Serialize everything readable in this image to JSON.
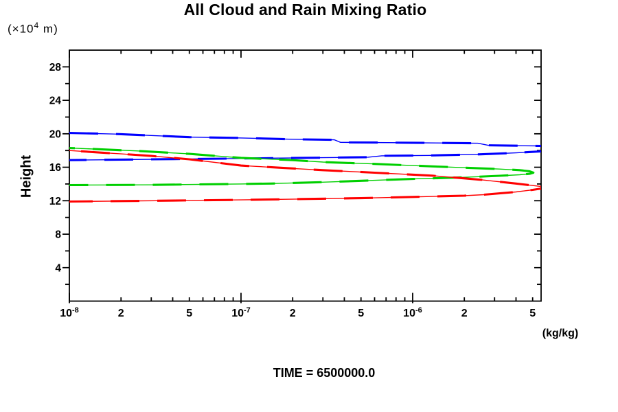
{
  "header": {
    "title": "All Cloud and Rain Mixing Ratio",
    "y_unit": {
      "prefix": "(×10",
      "sup": "4",
      "suffix": " m)"
    }
  },
  "footer": {
    "time_label": "TIME = 6500000.0"
  },
  "chart_data": {
    "type": "line",
    "title": "All Cloud and Rain Mixing Ratio",
    "xlabel": "(kg/kg)",
    "ylabel": "Height",
    "y_unit": "(×10^4 m)",
    "x_scale": "log",
    "x_range": [
      1e-08,
      5.6e-06
    ],
    "y_range": [
      0,
      30
    ],
    "grid": false,
    "legend": "none",
    "x_major_ticks": [
      {
        "value": 1e-08,
        "base": "10",
        "sup": "-8"
      },
      {
        "value": 1e-07,
        "base": "10",
        "sup": "-7"
      },
      {
        "value": 1e-06,
        "base": "10",
        "sup": "-6"
      }
    ],
    "x_minor_ticks": [
      2e-08,
      3e-08,
      4e-08,
      5e-08,
      6e-08,
      7e-08,
      8e-08,
      9e-08,
      2e-07,
      3e-07,
      4e-07,
      5e-07,
      6e-07,
      7e-07,
      8e-07,
      9e-07,
      2e-06,
      3e-06,
      4e-06,
      5e-06
    ],
    "x_minor_labels": [
      {
        "value": 2e-08,
        "label": "2"
      },
      {
        "value": 5e-08,
        "label": "5"
      },
      {
        "value": 2e-07,
        "label": "2"
      },
      {
        "value": 5e-07,
        "label": "5"
      },
      {
        "value": 2e-06,
        "label": "2"
      },
      {
        "value": 5e-06,
        "label": "5"
      }
    ],
    "y_major_ticks": [
      {
        "value": 4,
        "label": "4"
      },
      {
        "value": 8,
        "label": "8"
      },
      {
        "value": 12,
        "label": "12"
      },
      {
        "value": 16,
        "label": "16"
      },
      {
        "value": 20,
        "label": "20"
      },
      {
        "value": 24,
        "label": "24"
      },
      {
        "value": 28,
        "label": "28"
      }
    ],
    "y_minor_ticks": [
      2,
      6,
      10,
      14,
      18,
      22,
      26
    ],
    "series": [
      {
        "name": "blue-upper-branch",
        "color": "#0000ff",
        "points": [
          [
            1e-08,
            20.1
          ],
          [
            2e-08,
            19.95
          ],
          [
            5e-08,
            19.6
          ],
          [
            1e-07,
            19.5
          ],
          [
            2e-07,
            19.35
          ],
          [
            3.5e-07,
            19.28
          ],
          [
            3.8e-07,
            18.98
          ],
          [
            1e-06,
            18.93
          ],
          [
            2.4e-06,
            18.87
          ],
          [
            2.75e-06,
            18.62
          ],
          [
            4.5e-06,
            18.57
          ],
          [
            5.6e-06,
            18.55
          ]
        ]
      },
      {
        "name": "blue-lower-branch",
        "color": "#0000ff",
        "points": [
          [
            1e-08,
            16.85
          ],
          [
            3e-08,
            16.95
          ],
          [
            1e-07,
            17.05
          ],
          [
            3e-07,
            17.15
          ],
          [
            5.5e-07,
            17.2
          ],
          [
            6.6e-07,
            17.37
          ],
          [
            1.3e-06,
            17.42
          ],
          [
            2.5e-06,
            17.55
          ],
          [
            4e-06,
            17.72
          ],
          [
            5.6e-06,
            17.9
          ]
        ]
      },
      {
        "name": "green-loop",
        "color": "#00cf00",
        "points": [
          [
            1e-08,
            18.3
          ],
          [
            2.5e-08,
            17.95
          ],
          [
            5e-08,
            17.6
          ],
          [
            1e-07,
            17.12
          ],
          [
            2e-07,
            16.85
          ],
          [
            3e-07,
            16.62
          ],
          [
            6e-07,
            16.4
          ],
          [
            1.3e-06,
            16.1
          ],
          [
            2e-06,
            15.95
          ],
          [
            3.2e-06,
            15.78
          ],
          [
            4.2e-06,
            15.65
          ],
          [
            4.8e-06,
            15.52
          ],
          [
            5.05e-06,
            15.35
          ],
          [
            4.8e-06,
            15.22
          ],
          [
            4.2e-06,
            15.1
          ],
          [
            3.2e-06,
            14.98
          ],
          [
            2e-06,
            14.8
          ],
          [
            1e-06,
            14.6
          ],
          [
            5e-07,
            14.38
          ],
          [
            3e-07,
            14.22
          ],
          [
            1.5e-07,
            14.05
          ],
          [
            1e-07,
            14.0
          ],
          [
            3e-08,
            13.9
          ],
          [
            1e-08,
            13.87
          ]
        ]
      },
      {
        "name": "red-upper-branch",
        "color": "#ff0000",
        "points": [
          [
            1e-08,
            18.0
          ],
          [
            2e-08,
            17.6
          ],
          [
            3e-08,
            17.35
          ],
          [
            5e-08,
            16.95
          ],
          [
            1e-07,
            16.2
          ],
          [
            3e-07,
            15.65
          ],
          [
            6e-07,
            15.35
          ],
          [
            1.3e-06,
            15.0
          ],
          [
            2.5e-06,
            14.5
          ],
          [
            4e-06,
            14.05
          ],
          [
            5.6e-06,
            13.7
          ]
        ]
      },
      {
        "name": "red-lower-branch",
        "color": "#ff0000",
        "points": [
          [
            1e-08,
            11.9
          ],
          [
            1e-07,
            12.1
          ],
          [
            5e-07,
            12.3
          ],
          [
            1e-06,
            12.45
          ],
          [
            2e-06,
            12.6
          ],
          [
            2.6e-06,
            12.72
          ],
          [
            4e-06,
            13.05
          ],
          [
            5e-06,
            13.3
          ],
          [
            5.6e-06,
            13.45
          ]
        ]
      }
    ],
    "annotations": {
      "time_label": "TIME = 6500000.0"
    }
  }
}
